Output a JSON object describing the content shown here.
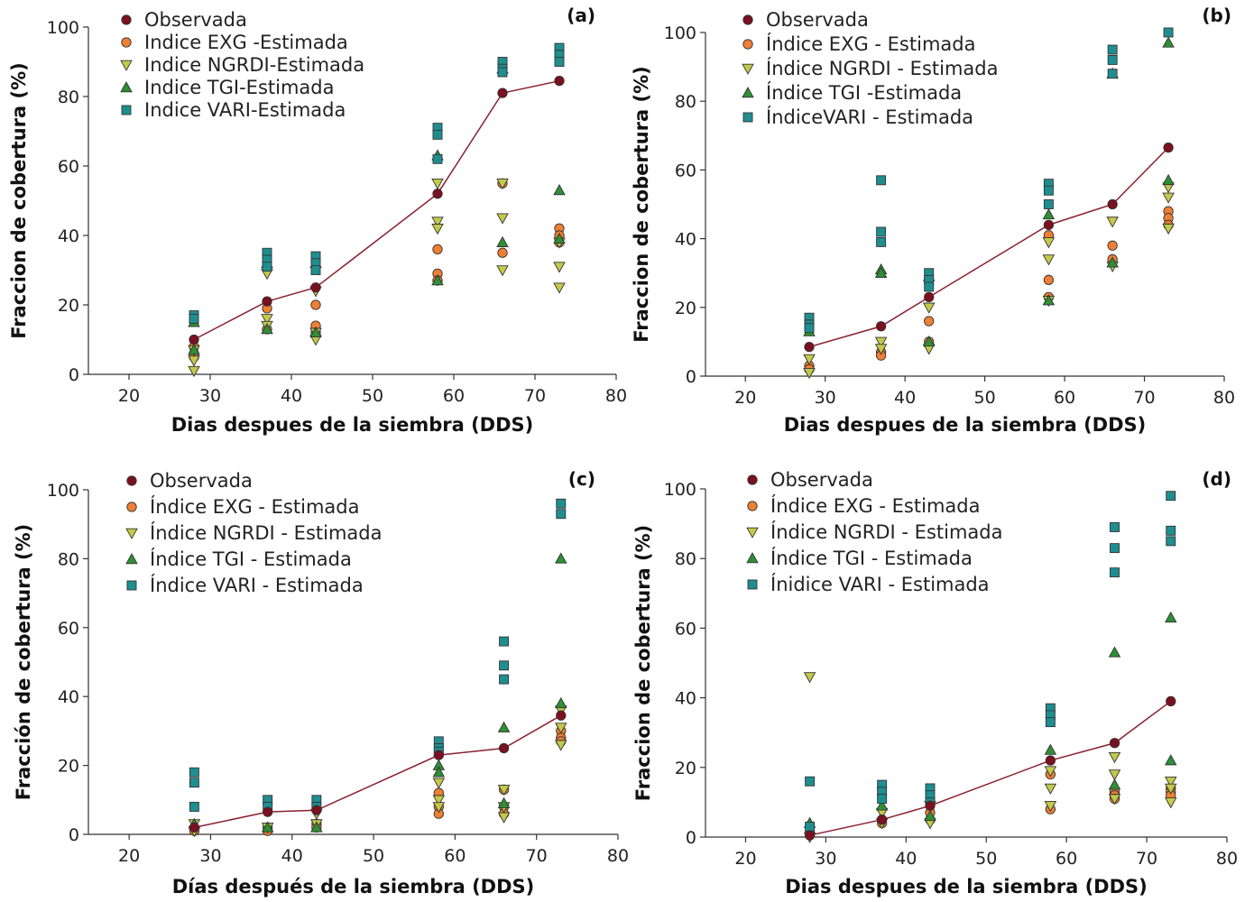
{
  "colors": {
    "observada": "#7a1020",
    "exg": "#ee7f33",
    "ngrdi": "#c4c94a",
    "tgi": "#2e8f34",
    "vari": "#1f8e90",
    "line": "#8a2030",
    "axis": "#333333"
  },
  "chart_data": [
    {
      "type": "scatter",
      "panel_label": "(a)",
      "xlabel": "Dias despues de la siembra (DDS)",
      "ylabel": "Fraccion de cobertura (%)",
      "xlim": [
        15,
        80
      ],
      "ylim": [
        0,
        100
      ],
      "xticks": [
        20,
        30,
        40,
        50,
        60,
        70,
        80
      ],
      "yticks": [
        0,
        20,
        40,
        60,
        80,
        100
      ],
      "legend_position": "top-left",
      "series": [
        {
          "name": "Observada",
          "key": "observada",
          "marker": "circle",
          "line": true,
          "x": [
            28,
            37,
            43,
            58,
            66,
            73
          ],
          "y": [
            10,
            21,
            25,
            52,
            81,
            84.5
          ]
        },
        {
          "name": "Indice EXG -Estimada",
          "key": "exg",
          "marker": "circle",
          "x": [
            28,
            28,
            28,
            37,
            37,
            43,
            43,
            43,
            58,
            58,
            58,
            66,
            66,
            73,
            73,
            73
          ],
          "y": [
            5,
            6,
            8,
            19,
            13,
            20,
            14,
            12,
            36,
            29,
            27,
            55,
            35,
            42,
            40,
            38
          ]
        },
        {
          "name": "Indice NGRDI-Estimada",
          "key": "ngrdi",
          "marker": "tri-down",
          "x": [
            28,
            28,
            28,
            37,
            37,
            37,
            43,
            43,
            43,
            58,
            58,
            58,
            66,
            66,
            66,
            73,
            73,
            73
          ],
          "y": [
            1,
            4,
            7,
            29,
            16,
            14,
            24,
            12,
            10,
            55,
            44,
            42,
            55,
            45,
            30,
            38,
            31,
            25
          ]
        },
        {
          "name": "Indice TGI-Estimada",
          "key": "tgi",
          "marker": "tri-up",
          "x": [
            28,
            28,
            37,
            37,
            43,
            43,
            58,
            58,
            66,
            66,
            73,
            73
          ],
          "y": [
            15,
            7,
            32,
            13,
            32,
            12,
            63,
            27,
            88,
            38,
            53,
            39
          ]
        },
        {
          "name": "Indice VARI-Estimada",
          "key": "vari",
          "marker": "square",
          "x": [
            28,
            28,
            28,
            37,
            37,
            37,
            43,
            43,
            43,
            58,
            58,
            58,
            66,
            66,
            66,
            73,
            73,
            73
          ],
          "y": [
            17,
            16,
            16,
            35,
            33,
            31,
            34,
            32,
            30,
            71,
            69,
            62,
            90,
            88,
            87,
            94,
            92,
            90
          ]
        }
      ]
    },
    {
      "type": "scatter",
      "panel_label": "(b)",
      "xlabel": "Dias despues de la siembra (DDS)",
      "ylabel": "Fraccion de cobertura (%)",
      "xlim": [
        15,
        80
      ],
      "ylim": [
        0,
        100
      ],
      "xticks": [
        20,
        30,
        40,
        50,
        60,
        70,
        80
      ],
      "yticks": [
        0,
        20,
        40,
        60,
        80,
        100
      ],
      "legend_position": "top-left",
      "series": [
        {
          "name": "Observada",
          "key": "observada",
          "marker": "circle",
          "line": true,
          "x": [
            28,
            37,
            43,
            58,
            66,
            73
          ],
          "y": [
            8.5,
            14.5,
            23,
            44,
            50,
            66.5
          ]
        },
        {
          "name": "Índice EXG - Estimada",
          "key": "exg",
          "marker": "circle",
          "x": [
            28,
            28,
            37,
            37,
            43,
            43,
            58,
            58,
            58,
            66,
            66,
            73,
            73,
            73
          ],
          "y": [
            3,
            2,
            7,
            6,
            16,
            10,
            41,
            28,
            23,
            38,
            34,
            48,
            46,
            44
          ]
        },
        {
          "name": "Índice NGRDI - Estimada",
          "key": "ngrdi",
          "marker": "tri-down",
          "x": [
            28,
            28,
            37,
            37,
            43,
            43,
            58,
            58,
            58,
            66,
            66,
            73,
            73,
            73
          ],
          "y": [
            5,
            1,
            10,
            8,
            20,
            8,
            39,
            34,
            22,
            45,
            32,
            55,
            52,
            43
          ]
        },
        {
          "name": "Índice TGI -Estimada",
          "key": "tgi",
          "marker": "tri-up",
          "x": [
            28,
            37,
            37,
            43,
            43,
            58,
            58,
            66,
            66,
            73,
            73
          ],
          "y": [
            13,
            31,
            30,
            29,
            10,
            47,
            22,
            88,
            33,
            97,
            57
          ]
        },
        {
          "name": "ÍndiceVARI - Estimada",
          "key": "vari",
          "marker": "square",
          "x": [
            28,
            28,
            28,
            37,
            37,
            37,
            43,
            43,
            43,
            58,
            58,
            58,
            66,
            66,
            66,
            73
          ],
          "y": [
            17,
            15,
            14,
            57,
            42,
            39,
            30,
            28,
            26,
            56,
            54,
            50,
            95,
            92,
            88,
            100
          ]
        }
      ]
    },
    {
      "type": "scatter",
      "panel_label": "(c)",
      "xlabel": "Días después de la siembra (DDS)",
      "ylabel": "Fracción de cobertura (%)",
      "xlim": [
        15,
        80
      ],
      "ylim": [
        0,
        100
      ],
      "xticks": [
        20,
        30,
        40,
        50,
        60,
        70,
        80
      ],
      "yticks": [
        0,
        20,
        40,
        60,
        80,
        100
      ],
      "legend_position": "top-left",
      "series": [
        {
          "name": "Observada",
          "key": "observada",
          "marker": "circle",
          "line": true,
          "x": [
            28,
            37,
            43,
            58,
            66,
            73
          ],
          "y": [
            2,
            6.5,
            7,
            23,
            25,
            34.5
          ]
        },
        {
          "name": "Índice EXG - Estimada",
          "key": "exg",
          "marker": "circle",
          "x": [
            28,
            37,
            37,
            43,
            43,
            58,
            58,
            58,
            66,
            66,
            66,
            73,
            73,
            73
          ],
          "y": [
            1,
            2,
            1,
            3,
            2,
            12,
            8,
            6,
            13,
            8,
            6,
            30,
            28,
            27
          ]
        },
        {
          "name": "Índice NGRDI - Estimada",
          "key": "ngrdi",
          "marker": "tri-down",
          "x": [
            28,
            28,
            37,
            43,
            43,
            58,
            58,
            58,
            66,
            66,
            66,
            73,
            73,
            73
          ],
          "y": [
            3,
            1,
            2,
            6,
            3,
            15,
            10,
            8,
            13,
            8,
            5,
            36,
            31,
            26
          ]
        },
        {
          "name": "Índice TGI - Estimada",
          "key": "tgi",
          "marker": "tri-up",
          "x": [
            28,
            37,
            43,
            58,
            58,
            66,
            66,
            73,
            73
          ],
          "y": [
            3,
            2,
            2,
            20,
            18,
            31,
            9,
            80,
            38
          ]
        },
        {
          "name": "Índice VARI - Estimada",
          "key": "vari",
          "marker": "square",
          "x": [
            28,
            28,
            28,
            37,
            37,
            43,
            43,
            58,
            58,
            58,
            66,
            66,
            66,
            73,
            73
          ],
          "y": [
            18,
            15,
            8,
            10,
            8,
            10,
            8,
            27,
            25,
            24,
            56,
            49,
            45,
            96,
            93
          ]
        }
      ]
    },
    {
      "type": "scatter",
      "panel_label": "(d)",
      "xlabel": "Dias despues de la siembra (DDS)",
      "ylabel": "Fraccion de cobertura (%)",
      "xlim": [
        15,
        80
      ],
      "ylim": [
        0,
        100
      ],
      "xticks": [
        20,
        30,
        40,
        50,
        60,
        70,
        80
      ],
      "yticks": [
        0,
        20,
        40,
        60,
        80,
        100
      ],
      "legend_position": "top-left",
      "series": [
        {
          "name": "Observada",
          "key": "observada",
          "marker": "circle",
          "line": true,
          "x": [
            28,
            37,
            43,
            58,
            66,
            73
          ],
          "y": [
            0.5,
            5,
            9,
            22,
            27,
            39
          ]
        },
        {
          "name": "Índice EXG - Estimada",
          "key": "exg",
          "marker": "circle",
          "x": [
            28,
            37,
            37,
            43,
            43,
            58,
            58,
            66,
            66,
            66,
            73,
            73,
            73
          ],
          "y": [
            1,
            5,
            4,
            7,
            5,
            18,
            8,
            13,
            12,
            11,
            14,
            13,
            12
          ]
        },
        {
          "name": "Índice NGRDI - Estimada",
          "key": "ngrdi",
          "marker": "tri-down",
          "x": [
            28,
            28,
            37,
            37,
            43,
            43,
            58,
            58,
            58,
            66,
            66,
            66,
            73,
            73,
            73
          ],
          "y": [
            46,
            0,
            7,
            4,
            9,
            4,
            19,
            14,
            9,
            23,
            18,
            11,
            16,
            14,
            10
          ]
        },
        {
          "name": "Índice TGI - Estimada",
          "key": "tgi",
          "marker": "tri-up",
          "x": [
            28,
            37,
            43,
            58,
            66,
            66,
            73,
            73
          ],
          "y": [
            4,
            9,
            6,
            25,
            53,
            15,
            63,
            22
          ]
        },
        {
          "name": "Ínidice VARI - Estimada",
          "key": "vari",
          "marker": "square",
          "x": [
            28,
            28,
            37,
            37,
            37,
            43,
            43,
            43,
            58,
            58,
            58,
            66,
            66,
            66,
            73,
            73,
            73
          ],
          "y": [
            16,
            3,
            15,
            13,
            11,
            14,
            12,
            10,
            37,
            35,
            33,
            89,
            83,
            76,
            98,
            88,
            85
          ]
        }
      ]
    }
  ]
}
